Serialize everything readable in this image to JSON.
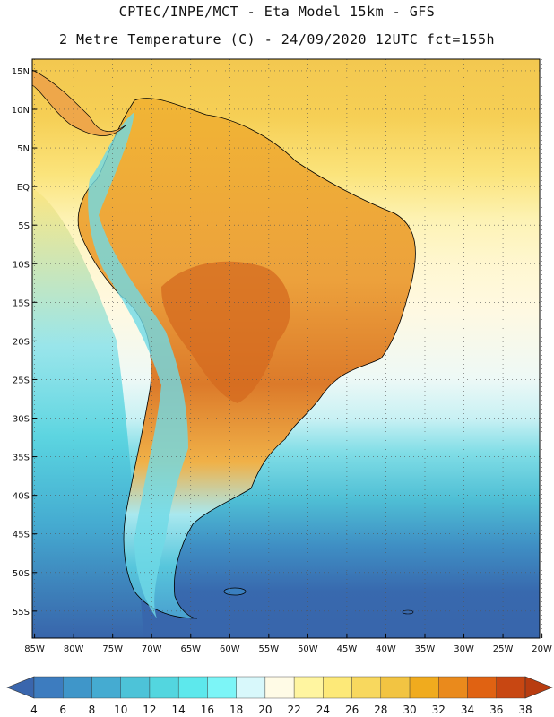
{
  "header": {
    "line1": "CPTEC/INPE/MCT  -   Eta Model 15km  -  GFS",
    "line2": "2 Metre Temperature (C) - 24/09/2020 12UTC fct=155h"
  },
  "map": {
    "lat_labels": [
      "15N",
      "10N",
      "5N",
      "EQ",
      "5S",
      "10S",
      "15S",
      "20S",
      "25S",
      "30S",
      "35S",
      "40S",
      "45S",
      "50S",
      "55S"
    ],
    "lat_values": [
      15,
      10,
      5,
      0,
      -5,
      -10,
      -15,
      -20,
      -25,
      -30,
      -35,
      -40,
      -45,
      -50,
      -55
    ],
    "lon_labels": [
      "85W",
      "80W",
      "75W",
      "70W",
      "65W",
      "60W",
      "55W",
      "50W",
      "45W",
      "40W",
      "35W",
      "30W",
      "25W",
      "20W"
    ],
    "lon_values": [
      -85,
      -80,
      -75,
      -70,
      -65,
      -60,
      -55,
      -50,
      -45,
      -40,
      -35,
      -30,
      -25,
      -20
    ],
    "lon_range": [
      -85.3,
      -20.3
    ],
    "lat_range": [
      -58.5,
      16.5
    ],
    "gridlines": "dotted"
  },
  "colorbar": {
    "values": [
      "4",
      "6",
      "8",
      "10",
      "12",
      "14",
      "16",
      "18",
      "20",
      "22",
      "24",
      "26",
      "28",
      "30",
      "32",
      "34",
      "36",
      "38"
    ],
    "colors": [
      "#3a66ad",
      "#3d7cbf",
      "#3f96c9",
      "#45abd1",
      "#4dc3d8",
      "#53d6df",
      "#5de8ec",
      "#7cf5f7",
      "#d8f8fb",
      "#fffbe6",
      "#fff5a0",
      "#fde978",
      "#f8d85e",
      "#f2c442",
      "#f0ab1e",
      "#ea8a1c",
      "#e06212",
      "#c84712",
      "#b83c10"
    ]
  }
}
